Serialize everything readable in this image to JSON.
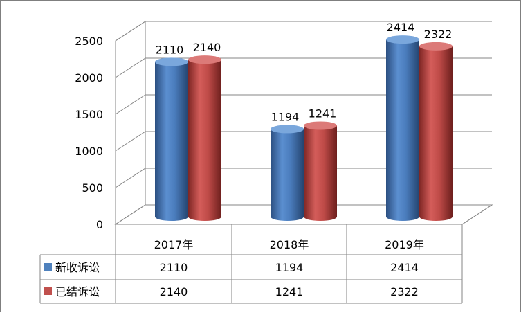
{
  "chart_data": {
    "type": "bar",
    "style": "3d-cylinder",
    "categories": [
      "2017年",
      "2018年",
      "2019年"
    ],
    "series": [
      {
        "name": "新收诉讼",
        "values": [
          2110,
          1194,
          2414
        ],
        "color": "#4f81bd"
      },
      {
        "name": "已结诉讼",
        "values": [
          2140,
          1241,
          2322
        ],
        "color": "#c0504d"
      }
    ],
    "ylim": [
      0,
      2500
    ],
    "yticks": [
      0,
      500,
      1000,
      1500,
      2000,
      2500
    ],
    "grid": true,
    "legend": "data-table",
    "data_table": true
  }
}
